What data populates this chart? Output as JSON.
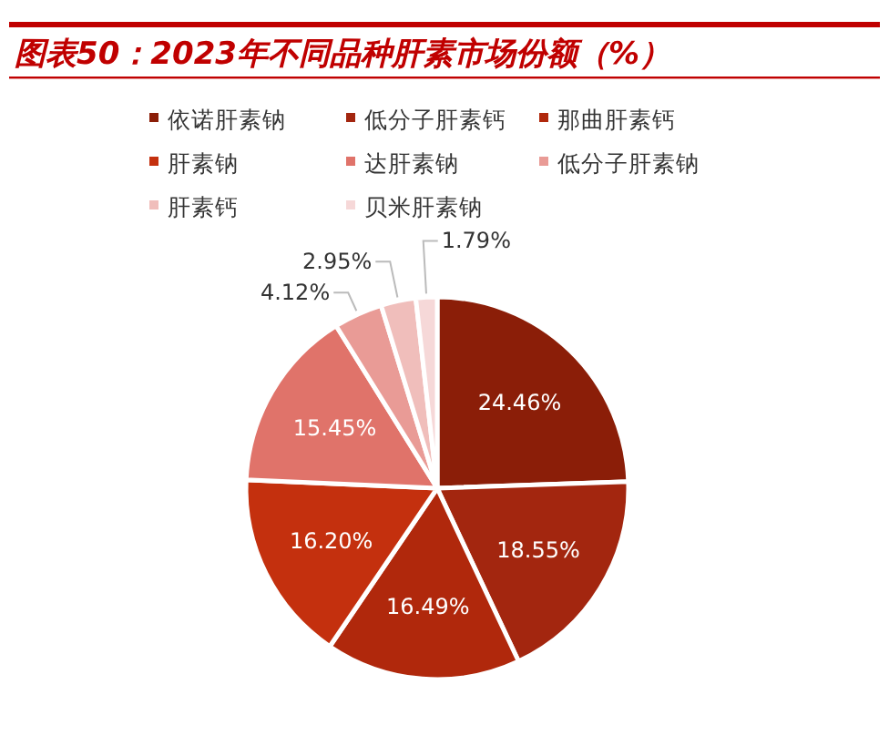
{
  "chart_data": {
    "type": "pie",
    "title": "图表50：2023年不同品种肝素市场份额（%）",
    "categories": [
      "依诺肝素钠",
      "低分子肝素钙",
      "那曲肝素钙",
      "肝素钠",
      "达肝素钠",
      "低分子肝素钠",
      "肝素钙",
      "贝米肝素钠"
    ],
    "values": [
      24.46,
      18.55,
      16.49,
      16.2,
      15.45,
      4.12,
      2.95,
      1.79
    ],
    "colors": [
      "#8b1e08",
      "#a3260f",
      "#b0280c",
      "#c4300e",
      "#e0736a",
      "#e99b96",
      "#f0bebb",
      "#f6d8d8"
    ],
    "value_labels": [
      "24.46%",
      "18.55%",
      "16.49%",
      "16.20%",
      "15.45%",
      "4.12%",
      "2.95%",
      "1.79%"
    ],
    "legend": "top"
  }
}
